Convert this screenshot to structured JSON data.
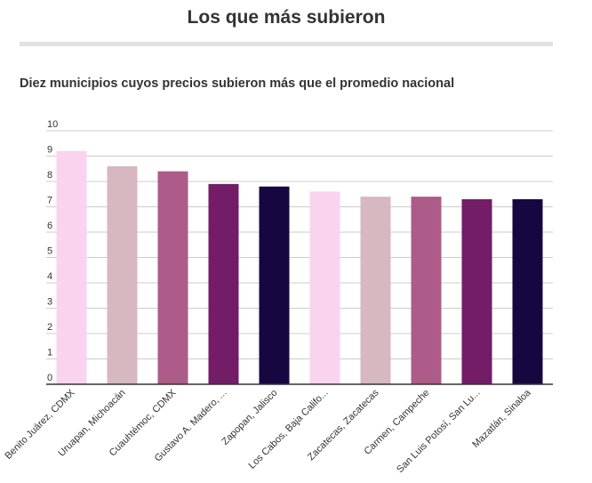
{
  "header": {
    "title": "Los que más subieron"
  },
  "chart_data": {
    "type": "bar",
    "title": "Los que más subieron",
    "subtitle": "Diez municipios cuyos precios subieron más que el promedio nacional",
    "xlabel": "",
    "ylabel": "",
    "ylim": [
      0,
      10
    ],
    "yticks": [
      "0",
      "1",
      "2",
      "3",
      "4",
      "5",
      "6",
      "7",
      "8",
      "9",
      "10"
    ],
    "grid": true,
    "categories": [
      "Benito Juárez, CDMX",
      "Uruapan, Michoacán",
      "Cuauhtémoc, CDMX",
      "Gustavo A. Madero, ...",
      "Zapopan, Jalisco",
      "Los Cabos, Baja Califo...",
      "Zacatecas, Zacatecas",
      "Carmen, Campeche",
      "San Luis Potosí, San Lu...",
      "Mazatlán, Sinaloa"
    ],
    "values": [
      9.2,
      8.6,
      8.4,
      7.9,
      7.8,
      7.6,
      7.4,
      7.4,
      7.3,
      7.3
    ],
    "colors": [
      "#fad3ee",
      "#d7b8c0",
      "#ad5b88",
      "#731c67",
      "#170741",
      "#fad3ee",
      "#d7b8c0",
      "#ad5b88",
      "#731c67",
      "#170741"
    ],
    "gridColor": "#cccccc",
    "axisColor": "#333333"
  }
}
